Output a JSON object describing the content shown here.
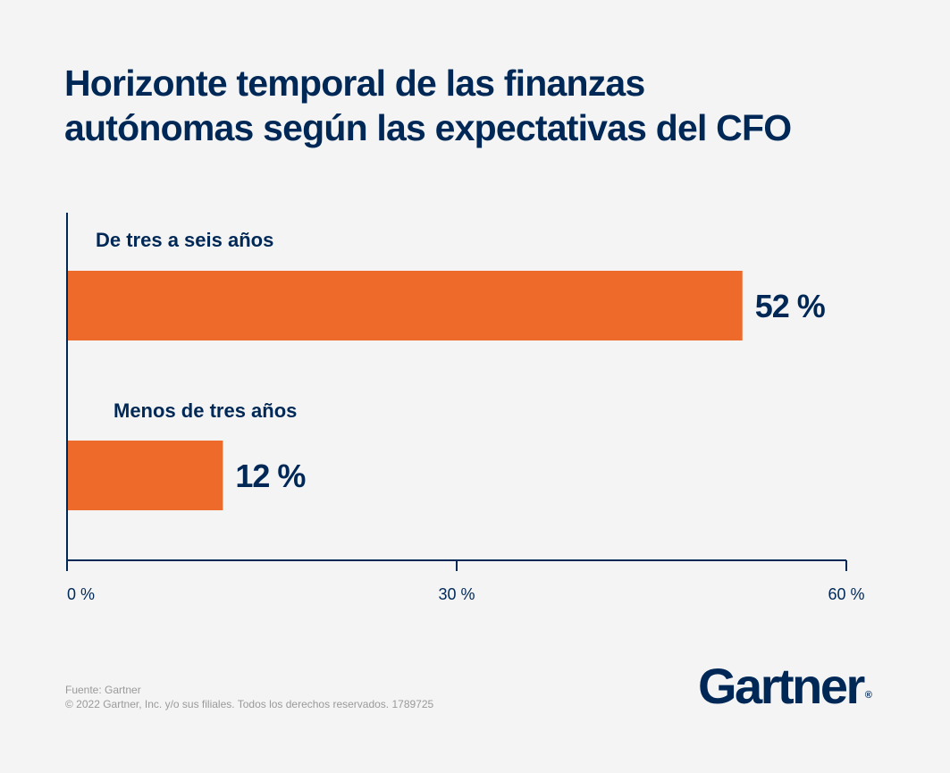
{
  "title_lines": [
    "Horizonte temporal de las finanzas",
    "autónomas según las expectativas del CFO"
  ],
  "chart_data": {
    "type": "bar",
    "orientation": "horizontal",
    "title": "Horizonte temporal de las finanzas autónomas según las expectativas del CFO",
    "categories": [
      "De tres a seis años",
      "Menos de tres años"
    ],
    "values": [
      52,
      12
    ],
    "value_labels": [
      "52 %",
      "12 %"
    ],
    "xlim": [
      0,
      60
    ],
    "xticks": [
      0,
      30,
      60
    ],
    "xtick_labels": [
      "0 %",
      "30 %",
      "60 %"
    ],
    "grid": false,
    "bar_color": "#ed6a2b",
    "axis_color": "#002856"
  },
  "footer": {
    "source": "Fuente: Gartner",
    "copyright": "© 2022 Gartner, Inc. y/o sus filiales. Todos los derechos reservados. 1789725"
  },
  "logo": {
    "text": "Gartner",
    "mark": "®"
  }
}
